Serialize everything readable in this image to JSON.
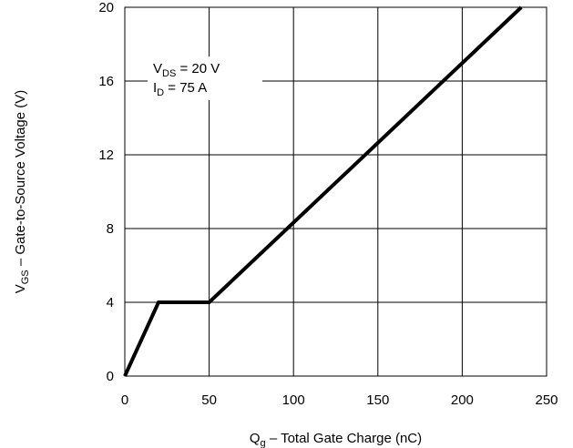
{
  "chart_data": {
    "type": "line",
    "x_axis": {
      "label": {
        "main": "Q",
        "sub": "g",
        "rest": " –  Total Gate Charge (nC)"
      },
      "range": [
        0,
        250
      ],
      "ticks": [
        0,
        50,
        100,
        150,
        200,
        250
      ]
    },
    "y_axis": {
      "label": {
        "main": "V",
        "sub": "GS",
        "rest": " –  Gate-to-Source Voltage (V)"
      },
      "range": [
        0,
        20
      ],
      "ticks": [
        0,
        4,
        8,
        12,
        16,
        20
      ]
    },
    "grid": true,
    "series": [
      {
        "color": "#000000",
        "points": [
          [
            0,
            0
          ],
          [
            20,
            4
          ],
          [
            50,
            4
          ],
          [
            235,
            20
          ]
        ]
      }
    ],
    "annotation": [
      {
        "main": "V",
        "sub": "DS",
        "rest": " = 20 V"
      },
      {
        "main": "I",
        "sub": "D",
        "rest": " = 75 A"
      }
    ]
  }
}
